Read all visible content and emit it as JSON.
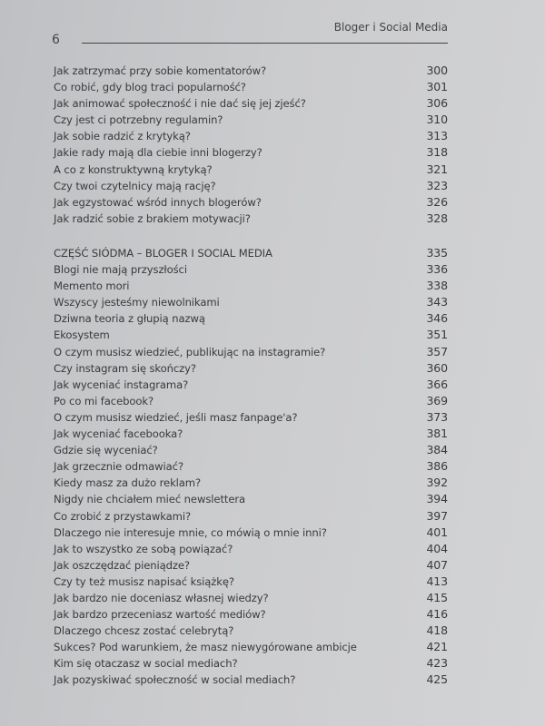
{
  "header": {
    "page_number": "6",
    "running_title": "Bloger i Social Media"
  },
  "toc": {
    "group1": [
      {
        "title": "Jak zatrzymać przy sobie komentatorów?",
        "page": "300"
      },
      {
        "title": "Co robić, gdy blog traci popularność?",
        "page": "301"
      },
      {
        "title": "Jak animować społeczność i nie dać się jej zjeść?",
        "page": "306"
      },
      {
        "title": "Czy jest ci potrzebny regulamin?",
        "page": "310"
      },
      {
        "title": "Jak sobie radzić z krytyką?",
        "page": "313"
      },
      {
        "title": "Jakie rady mają dla ciebie inni blogerzy?",
        "page": "318"
      },
      {
        "title": "A co z konstruktywną krytyką?",
        "page": "321"
      },
      {
        "title": "Czy twoi czytelnicy mają rację?",
        "page": "323"
      },
      {
        "title": "Jak egzystować wśród innych blogerów?",
        "page": "326"
      },
      {
        "title": "Jak radzić sobie z brakiem motywacji?",
        "page": "328"
      }
    ],
    "group2": [
      {
        "title": "CZĘŚĆ SIÓDMA – BLOGER I SOCIAL MEDIA",
        "page": "335"
      },
      {
        "title": "Blogi nie mają przyszłości",
        "page": "336"
      },
      {
        "title": "Memento mori",
        "page": "338"
      },
      {
        "title": "Wszyscy jesteśmy niewolnikami",
        "page": "343"
      },
      {
        "title": "Dziwna teoria z głupią nazwą",
        "page": "346"
      },
      {
        "title": "Ekosystem",
        "page": "351"
      },
      {
        "title": "O czym musisz wiedzieć, publikując na instagramie?",
        "page": "357"
      },
      {
        "title": "Czy instagram się skończy?",
        "page": "360"
      },
      {
        "title": "Jak wyceniać instagrama?",
        "page": "366"
      },
      {
        "title": "Po co mi facebook?",
        "page": "369"
      },
      {
        "title": "O czym musisz wiedzieć, jeśli masz fanpage'a?",
        "page": "373"
      },
      {
        "title": "Jak wyceniać facebooka?",
        "page": "381"
      },
      {
        "title": "Gdzie się wyceniać?",
        "page": "384"
      },
      {
        "title": "Jak grzecznie odmawiać?",
        "page": "386"
      },
      {
        "title": "Kiedy masz za dużo reklam?",
        "page": "392"
      },
      {
        "title": "Nigdy nie chciałem mieć newslettera",
        "page": "394"
      },
      {
        "title": "Co zrobić z przystawkami?",
        "page": "397"
      },
      {
        "title": "Dlaczego nie interesuje mnie, co mówią o mnie inni?",
        "page": "401"
      },
      {
        "title": "Jak to wszystko ze sobą powiązać?",
        "page": "404"
      },
      {
        "title": "Jak oszczędzać pieniądze?",
        "page": "407"
      },
      {
        "title": "Czy ty też musisz napisać książkę?",
        "page": "413"
      },
      {
        "title": "Jak bardzo nie doceniasz własnej wiedzy?",
        "page": "415"
      },
      {
        "title": "Jak bardzo przeceniasz wartość mediów?",
        "page": "416"
      },
      {
        "title": "Dlaczego chcesz zostać celebrytą?",
        "page": "418"
      },
      {
        "title": "Sukces? Pod warunkiem, że masz niewygórowane ambicje",
        "page": "421"
      },
      {
        "title": "Kim się otaczasz w social mediach?",
        "page": "423"
      },
      {
        "title": "Jak pozyskiwać społeczność w social mediach?",
        "page": "425"
      }
    ]
  }
}
